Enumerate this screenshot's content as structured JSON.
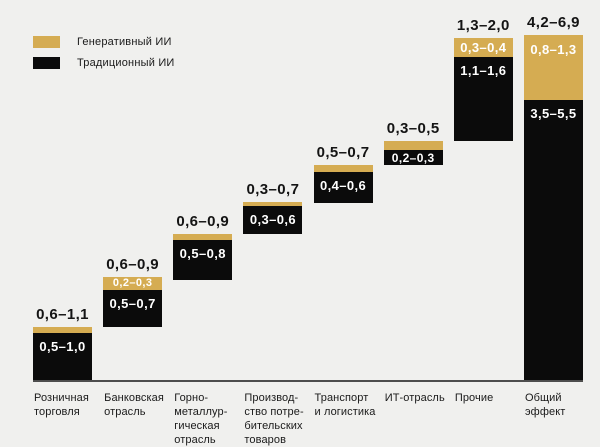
{
  "colors": {
    "background": "#F0F0EE",
    "generative": "#D5AC52",
    "traditional": "#0B0B0B",
    "axis": "#4D4D4D",
    "text_dark": "#1A1A1A",
    "text_light": "#FFFFFF"
  },
  "chart_data": {
    "type": "bar",
    "subtype": "waterfall-stacked",
    "title": "",
    "xlabel": "",
    "ylabel": "",
    "grid": false,
    "legend_position": "top-left",
    "legend": [
      {
        "label": "Генеративный ИИ",
        "color": "#D5AC52"
      },
      {
        "label": "Традиционный ИИ",
        "color": "#0B0B0B"
      }
    ],
    "bars": [
      {
        "category_lines": [
          "Розничная",
          "торговля"
        ],
        "total_label": "0,6–1,1",
        "total_range": [
          0.6,
          1.1
        ],
        "traditional_label": "0,5–1,0",
        "traditional_range": [
          0.5,
          1.0
        ],
        "generative_label": null,
        "generative_range": null,
        "is_total": false
      },
      {
        "category_lines": [
          "Банковская",
          "отрасль"
        ],
        "total_label": "0,6–0,9",
        "total_range": [
          0.6,
          0.9
        ],
        "traditional_label": "0,5–0,7",
        "traditional_range": [
          0.5,
          0.7
        ],
        "generative_label": "0,2–0,3",
        "generative_range": [
          0.2,
          0.3
        ],
        "is_total": false
      },
      {
        "category_lines": [
          "Горно-",
          "металлур-",
          "гическая",
          "отрасль"
        ],
        "total_label": "0,6–0,9",
        "total_range": [
          0.6,
          0.9
        ],
        "traditional_label": "0,5–0,8",
        "traditional_range": [
          0.5,
          0.8
        ],
        "generative_label": null,
        "generative_range": null,
        "is_total": false
      },
      {
        "category_lines": [
          "Производ-",
          "ство потре-",
          "бительских",
          "товаров"
        ],
        "total_label": "0,3–0,7",
        "total_range": [
          0.3,
          0.7
        ],
        "traditional_label": "0,3–0,6",
        "traditional_range": [
          0.3,
          0.6
        ],
        "generative_label": null,
        "generative_range": null,
        "is_total": false
      },
      {
        "category_lines": [
          "Транспорт",
          "и логистика"
        ],
        "total_label": "0,5–0,7",
        "total_range": [
          0.5,
          0.7
        ],
        "traditional_label": "0,4–0,6",
        "traditional_range": [
          0.4,
          0.6
        ],
        "generative_label": null,
        "generative_range": null,
        "is_total": false
      },
      {
        "category_lines": [
          "ИТ-отрасль"
        ],
        "total_label": "0,3–0,5",
        "total_range": [
          0.3,
          0.5
        ],
        "traditional_label": "0,2–0,3",
        "traditional_range": [
          0.2,
          0.3
        ],
        "generative_label": null,
        "generative_range": null,
        "is_total": false
      },
      {
        "category_lines": [
          "Прочие"
        ],
        "total_label": "1,3–2,0",
        "total_range": [
          1.3,
          2.0
        ],
        "traditional_label": "1,1–1,6",
        "traditional_range": [
          1.1,
          1.6
        ],
        "generative_label": "0,3–0,4",
        "generative_range": [
          0.3,
          0.4
        ],
        "is_total": false
      },
      {
        "category_lines": [
          "Общий",
          "эффект"
        ],
        "total_label": "4,2–6,9",
        "total_range": [
          4.2,
          6.9
        ],
        "traditional_label": "3,5–5,5",
        "traditional_range": [
          3.5,
          5.5
        ],
        "generative_label": "0,8–1,3",
        "generative_range": [
          0.8,
          1.3
        ],
        "is_total": true
      }
    ]
  }
}
